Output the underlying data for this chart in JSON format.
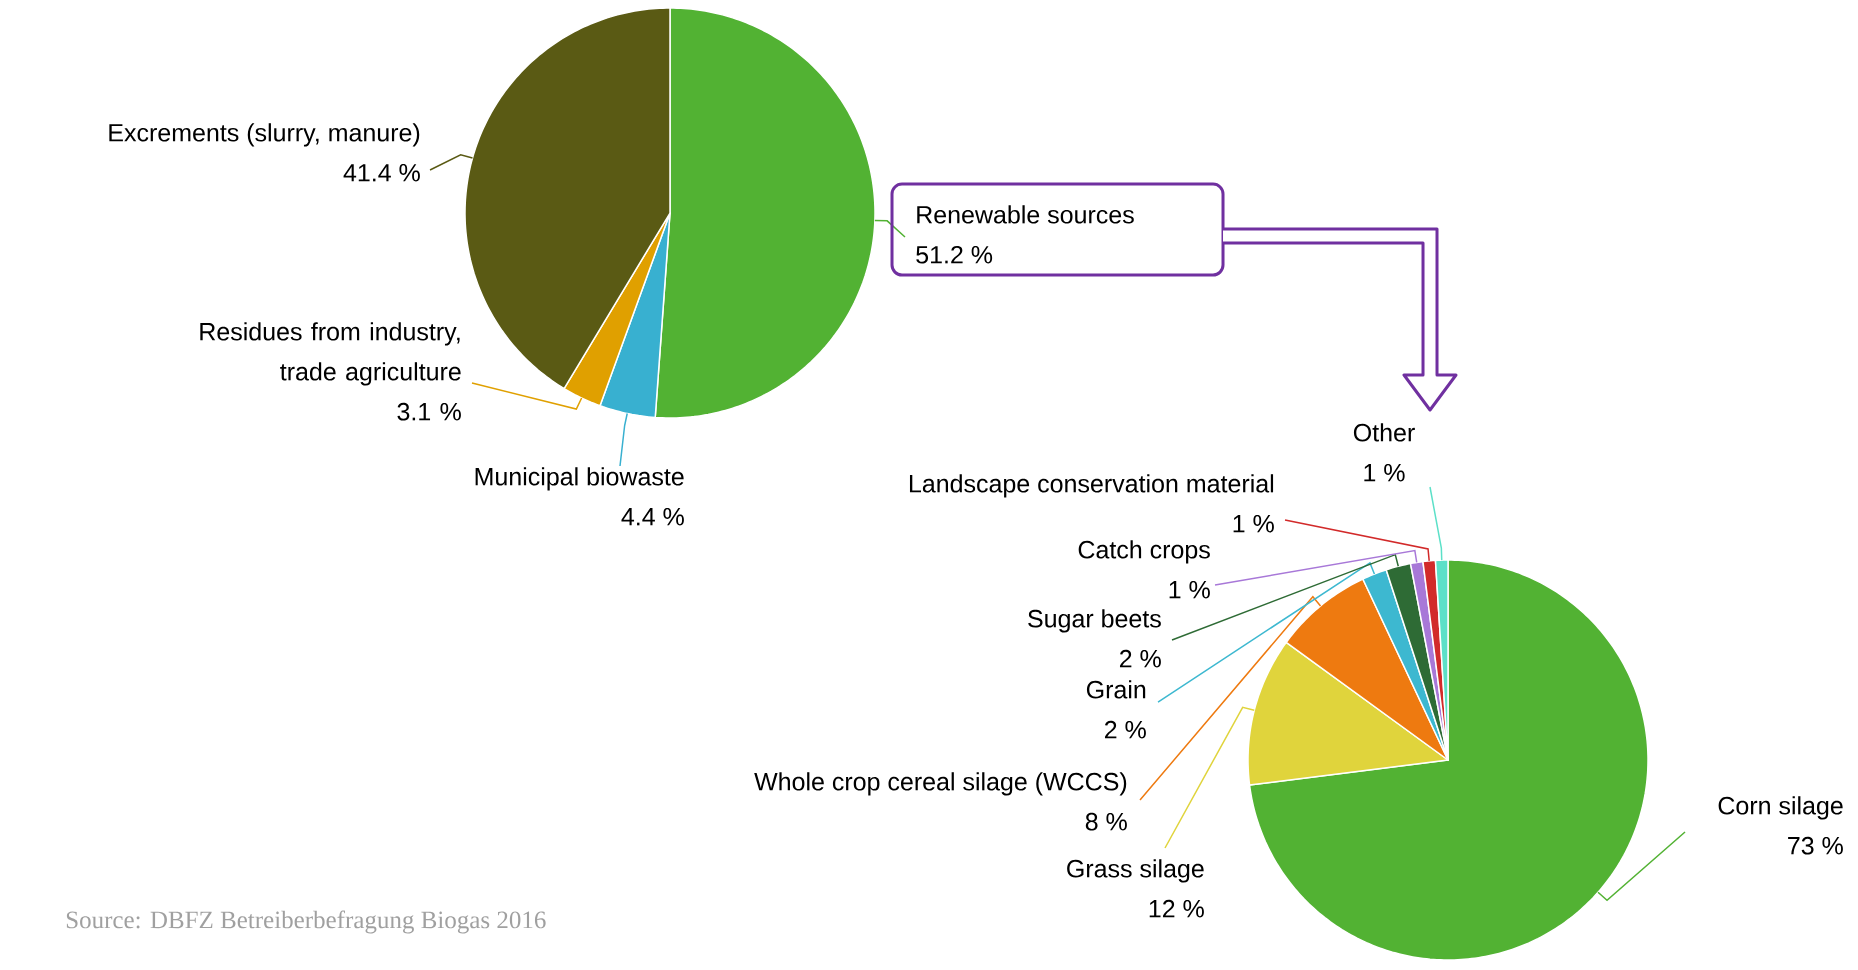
{
  "chart_data": [
    {
      "type": "pie",
      "categories": [
        "Renewable sources",
        "Municipal biowaste",
        "Residues from industry, trade agriculture",
        "Excrements (slurry, manure)"
      ],
      "values": [
        51.2,
        4.4,
        3.1,
        41.4
      ],
      "value_labels": [
        "51.2 %",
        "4.4 %",
        "3.1 %",
        "41.4 %"
      ],
      "colors": [
        "#52b233",
        "#38b0d0",
        "#e0a000",
        "#5a5a14"
      ],
      "annotations": [
        "Source: DBFZ Betreiberbefragung Biogas 2016"
      ]
    },
    {
      "type": "pie",
      "categories": [
        "Corn silage",
        "Grass silage",
        "Whole crop cereal silage (WCCS)",
        "Grain",
        "Sugar beets",
        "Catch crops",
        "Landscape conservation material",
        "Other"
      ],
      "values": [
        73,
        12,
        8,
        2,
        2,
        1,
        1,
        1
      ],
      "value_labels": [
        "73 %",
        "12 %",
        "8 %",
        "2 %",
        "2 %",
        "1 %",
        "1 %",
        "1 %"
      ],
      "colors": [
        "#52b233",
        "#e0d43c",
        "#ee7a10",
        "#3db8d0",
        "#2e6b35",
        "#a878d8",
        "#d22a2a",
        "#5ce0c8"
      ]
    }
  ]
}
